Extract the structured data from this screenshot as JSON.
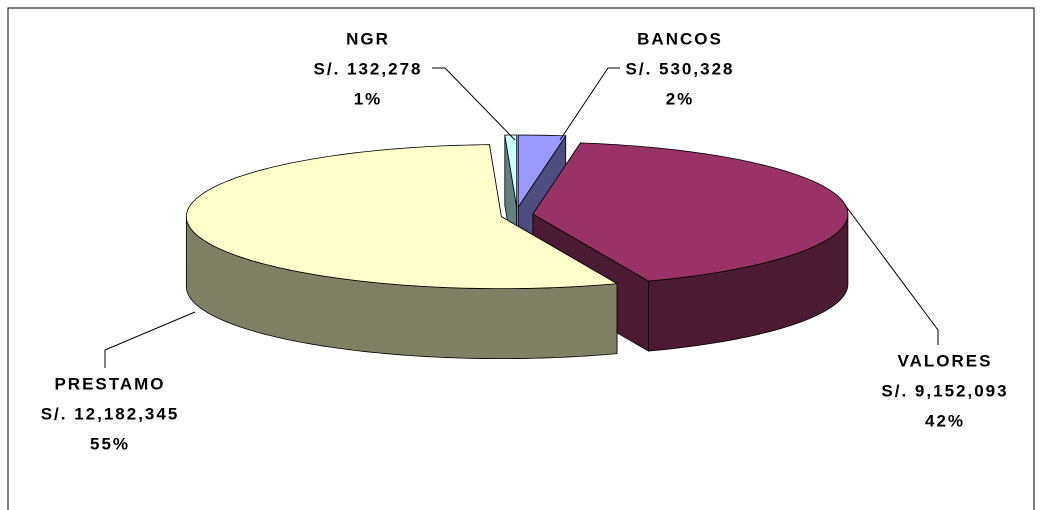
{
  "chart_data": {
    "type": "pie",
    "categories": [
      "BANCOS",
      "VALORES",
      "PRESTAMO",
      "NGR"
    ],
    "values": [
      530328,
      9152093,
      12182345,
      132278
    ],
    "value_labels": [
      "S/. 530,328",
      "S/. 9,152,093",
      "S/. 12,182,345",
      "S/. 132,278"
    ],
    "percentages": [
      2,
      42,
      55,
      1
    ],
    "percentage_labels": [
      "2%",
      "42%",
      "55%",
      "1%"
    ],
    "colors": [
      "#9999ff",
      "#993366",
      "#ffffcc",
      "#ccffff"
    ]
  }
}
